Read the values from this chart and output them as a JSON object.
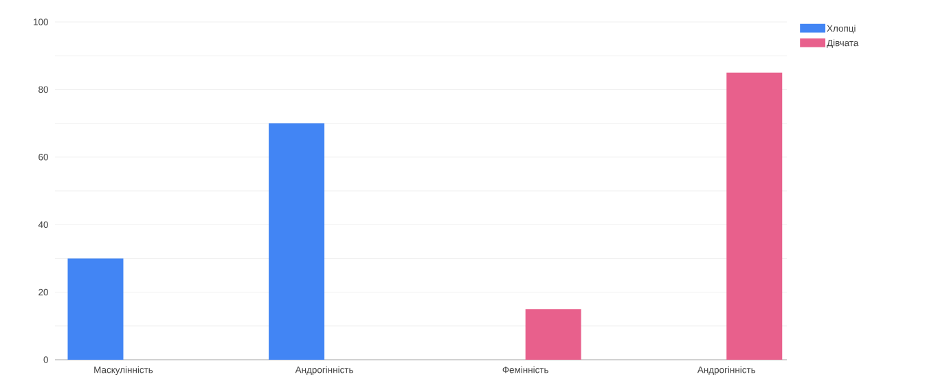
{
  "chart_data": {
    "type": "bar",
    "categories": [
      "Маскулінність",
      "Андрогінність",
      "Фемінність",
      "Андрогінність"
    ],
    "series": [
      {
        "name": "Хлопці",
        "color": "#4285f4",
        "values": [
          30,
          70,
          null,
          null
        ]
      },
      {
        "name": "Дівчата",
        "color": "#e8608c",
        "values": [
          null,
          null,
          15,
          85
        ]
      }
    ],
    "ylim": [
      0,
      100
    ],
    "yticks": [
      0,
      {
        "value": 10,
        "label": null
      },
      20,
      {
        "value": 30,
        "label": null
      },
      40,
      {
        "value": 50,
        "label": null
      },
      60,
      {
        "value": 70,
        "label": null
      },
      80,
      {
        "value": 90,
        "label": null
      },
      100
    ],
    "grid": "y",
    "legend": "top right"
  }
}
